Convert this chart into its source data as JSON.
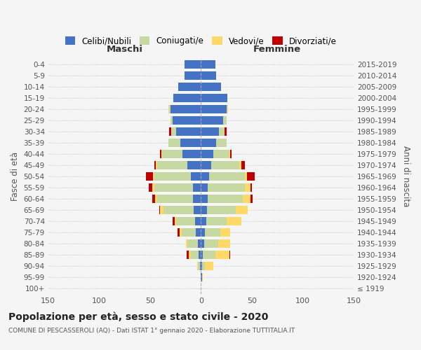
{
  "age_groups": [
    "100+",
    "95-99",
    "90-94",
    "85-89",
    "80-84",
    "75-79",
    "70-74",
    "65-69",
    "60-64",
    "55-59",
    "50-54",
    "45-49",
    "40-44",
    "35-39",
    "30-34",
    "25-29",
    "20-24",
    "15-19",
    "10-14",
    "5-9",
    "0-4"
  ],
  "birth_years": [
    "≤ 1919",
    "1920-1924",
    "1925-1929",
    "1930-1934",
    "1935-1939",
    "1940-1944",
    "1945-1949",
    "1950-1954",
    "1955-1959",
    "1960-1964",
    "1965-1969",
    "1970-1974",
    "1975-1979",
    "1980-1984",
    "1985-1989",
    "1990-1994",
    "1995-1999",
    "2000-2004",
    "2005-2009",
    "2010-2014",
    "2015-2019"
  ],
  "male": {
    "celibi": [
      0,
      0,
      1,
      2,
      3,
      5,
      6,
      7,
      8,
      8,
      10,
      13,
      18,
      20,
      24,
      28,
      30,
      27,
      22,
      16,
      16
    ],
    "coniugati": [
      0,
      0,
      2,
      8,
      10,
      14,
      18,
      30,
      35,
      38,
      36,
      30,
      20,
      12,
      5,
      2,
      1,
      0,
      0,
      0,
      0
    ],
    "vedovi": [
      0,
      0,
      1,
      2,
      2,
      2,
      2,
      3,
      2,
      2,
      1,
      1,
      1,
      0,
      0,
      0,
      1,
      0,
      0,
      0,
      0
    ],
    "divorziati": [
      0,
      0,
      0,
      2,
      0,
      2,
      2,
      1,
      3,
      3,
      7,
      2,
      1,
      0,
      2,
      0,
      0,
      0,
      0,
      0,
      0
    ]
  },
  "female": {
    "nubili": [
      0,
      1,
      1,
      2,
      3,
      4,
      5,
      6,
      7,
      7,
      8,
      10,
      12,
      15,
      18,
      22,
      25,
      26,
      20,
      15,
      14
    ],
    "coniugate": [
      0,
      0,
      3,
      12,
      14,
      15,
      20,
      28,
      34,
      36,
      35,
      28,
      16,
      10,
      5,
      3,
      1,
      0,
      0,
      0,
      0
    ],
    "vedove": [
      0,
      1,
      8,
      14,
      12,
      10,
      15,
      12,
      8,
      6,
      2,
      2,
      1,
      0,
      0,
      0,
      1,
      0,
      0,
      0,
      0
    ],
    "divorziate": [
      0,
      0,
      0,
      1,
      0,
      0,
      0,
      0,
      2,
      1,
      8,
      3,
      1,
      0,
      2,
      0,
      0,
      0,
      0,
      0,
      0
    ]
  },
  "colors": {
    "celibi": "#4472C4",
    "coniugati": "#C5D9A0",
    "vedovi": "#FFD966",
    "divorziati": "#C00000"
  },
  "xlim": 150,
  "title": "Popolazione per età, sesso e stato civile - 2020",
  "subtitle": "COMUNE DI PESCASSEROLI (AQ) - Dati ISTAT 1° gennaio 2020 - Elaborazione TUTTITALIA.IT",
  "ylabel_left": "Fasce di età",
  "ylabel_right": "Anni di nascita",
  "xlabel_male": "Maschi",
  "xlabel_female": "Femmine",
  "bg_color": "#f5f5f5",
  "grid_color": "#cccccc",
  "legend_labels": [
    "Celibi/Nubili",
    "Coniugati/e",
    "Vedovi/e",
    "Divorziati/e"
  ]
}
